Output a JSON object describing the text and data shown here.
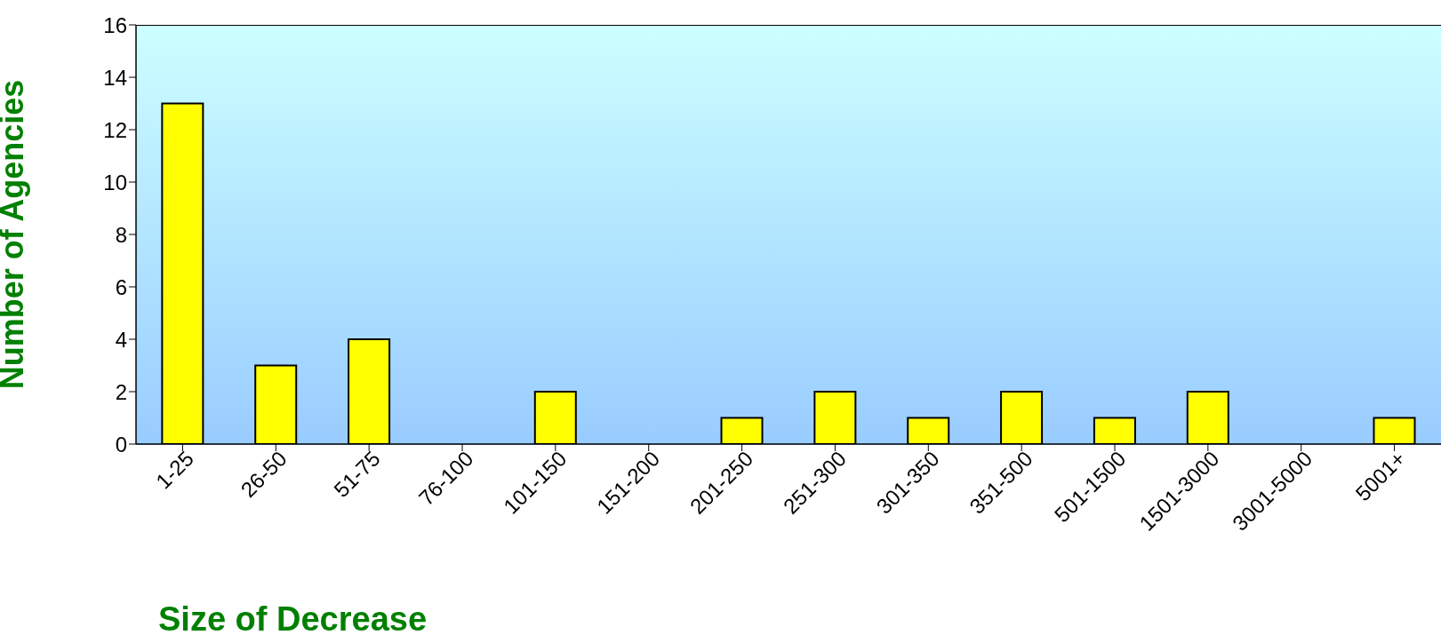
{
  "chart_data": {
    "type": "bar",
    "xlabel": "Size of Decrease",
    "ylabel": "Number of Agencies",
    "categories": [
      "1-25",
      "26-50",
      "51-75",
      "76-100",
      "101-150",
      "151-200",
      "201-250",
      "251-300",
      "301-350",
      "351-500",
      "501-1500",
      "1501-3000",
      "3001-5000",
      "5001+"
    ],
    "values": [
      13,
      3,
      4,
      0,
      2,
      0,
      1,
      2,
      1,
      2,
      1,
      2,
      0,
      1
    ],
    "color": "#ffff00",
    "ylim": [
      0,
      16
    ],
    "yticks": [
      0,
      2,
      4,
      6,
      8,
      10,
      12,
      14,
      16
    ],
    "grid": false,
    "legend": false
  }
}
